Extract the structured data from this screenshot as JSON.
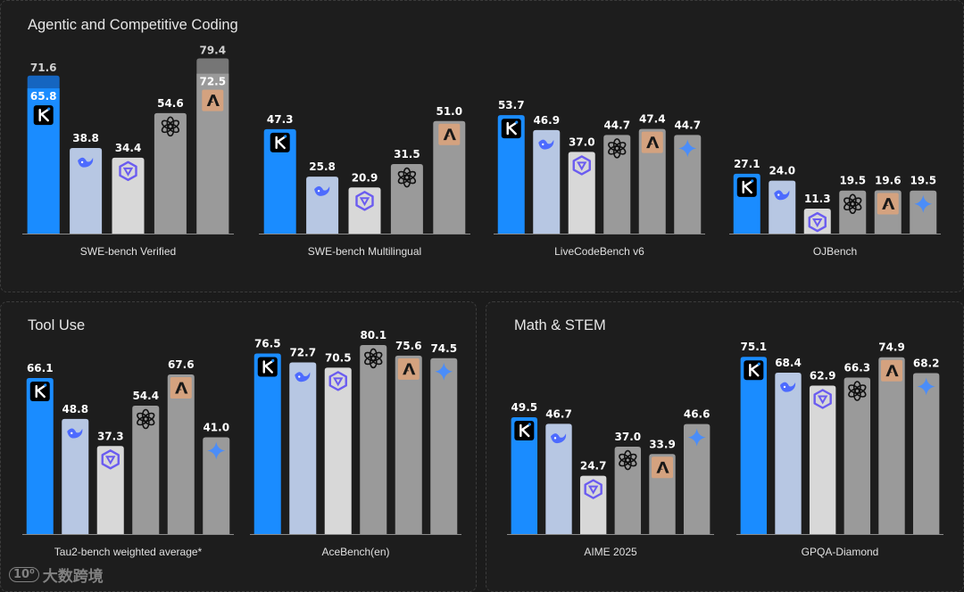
{
  "colors": {
    "kimi": "#1a8cff",
    "deepseek": "#b7c7e3",
    "qwen": "#d8d8d8",
    "openai": "#9a9a9a",
    "anthropic": "#9a9a9a",
    "gemini": "#9a9a9a",
    "extension": "#767676",
    "value_text": "#ffffff",
    "anthropic_icon_bg": "#d4a27f",
    "axis": "#8a8a8a"
  },
  "panels": [
    {
      "title": "Agentic and Competitive Coding"
    },
    {
      "title": "Tool Use"
    },
    {
      "title": "Math & STEM"
    }
  ],
  "watermark": {
    "logo": "10⁰",
    "text": "大数跨境"
  },
  "chart_data": [
    {
      "type": "bar",
      "title": "SWE-bench Verified",
      "panel": 0,
      "ylim": [
        0,
        80
      ],
      "bars": [
        {
          "model": "kimi",
          "icon": "kimi-icon",
          "value": 65.8,
          "extended": 71.6
        },
        {
          "model": "deepseek",
          "icon": "deepseek-icon",
          "value": 38.8
        },
        {
          "model": "qwen",
          "icon": "qwen-icon",
          "value": 34.4
        },
        {
          "model": "openai",
          "icon": "openai-icon",
          "value": 54.6
        },
        {
          "model": "anthropic",
          "icon": "anthropic-icon",
          "value": 72.5,
          "extended": 79.4
        }
      ]
    },
    {
      "type": "bar",
      "title": "SWE-bench Multilingual",
      "panel": 0,
      "ylim": [
        0,
        80
      ],
      "bars": [
        {
          "model": "kimi",
          "icon": "kimi-icon",
          "value": 47.3
        },
        {
          "model": "deepseek",
          "icon": "deepseek-icon",
          "value": 25.8
        },
        {
          "model": "qwen",
          "icon": "qwen-icon",
          "value": 20.9
        },
        {
          "model": "openai",
          "icon": "openai-icon",
          "value": 31.5
        },
        {
          "model": "anthropic",
          "icon": "anthropic-icon",
          "value": 51.0
        }
      ]
    },
    {
      "type": "bar",
      "title": "LiveCodeBench v6",
      "panel": 0,
      "ylim": [
        0,
        80
      ],
      "bars": [
        {
          "model": "kimi",
          "icon": "kimi-icon",
          "value": 53.7
        },
        {
          "model": "deepseek",
          "icon": "deepseek-icon",
          "value": 46.9
        },
        {
          "model": "qwen",
          "icon": "qwen-icon",
          "value": 37.0
        },
        {
          "model": "openai",
          "icon": "openai-icon",
          "value": 44.7
        },
        {
          "model": "anthropic",
          "icon": "anthropic-icon",
          "value": 47.4
        },
        {
          "model": "gemini",
          "icon": "gemini-icon",
          "value": 44.7
        }
      ]
    },
    {
      "type": "bar",
      "title": "OJBench",
      "panel": 0,
      "ylim": [
        0,
        80
      ],
      "bars": [
        {
          "model": "kimi",
          "icon": "kimi-icon",
          "value": 27.1
        },
        {
          "model": "deepseek",
          "icon": "deepseek-icon",
          "value": 24.0
        },
        {
          "model": "qwen",
          "icon": "qwen-icon",
          "value": 11.3
        },
        {
          "model": "openai",
          "icon": "openai-icon",
          "value": 19.5
        },
        {
          "model": "anthropic",
          "icon": "anthropic-icon",
          "value": 19.6
        },
        {
          "model": "gemini",
          "icon": "gemini-icon",
          "value": 19.5
        }
      ]
    },
    {
      "type": "bar",
      "title": "Tau2-bench weighted average*",
      "panel": 1,
      "ylim": [
        0,
        85
      ],
      "bars": [
        {
          "model": "kimi",
          "icon": "kimi-icon",
          "value": 66.1
        },
        {
          "model": "deepseek",
          "icon": "deepseek-icon",
          "value": 48.8
        },
        {
          "model": "qwen",
          "icon": "qwen-icon",
          "value": 37.3
        },
        {
          "model": "openai",
          "icon": "openai-icon",
          "value": 54.4
        },
        {
          "model": "anthropic",
          "icon": "anthropic-icon",
          "value": 67.6
        },
        {
          "model": "gemini",
          "icon": "gemini-icon",
          "value": 41.0
        }
      ]
    },
    {
      "type": "bar",
      "title": "AceBench(en)",
      "panel": 1,
      "ylim": [
        0,
        85
      ],
      "bars": [
        {
          "model": "kimi",
          "icon": "kimi-icon",
          "value": 76.5
        },
        {
          "model": "deepseek",
          "icon": "deepseek-icon",
          "value": 72.7
        },
        {
          "model": "qwen",
          "icon": "qwen-icon",
          "value": 70.5
        },
        {
          "model": "openai",
          "icon": "openai-icon",
          "value": 80.1
        },
        {
          "model": "anthropic",
          "icon": "anthropic-icon",
          "value": 75.6
        },
        {
          "model": "gemini",
          "icon": "gemini-icon",
          "value": 74.5
        }
      ]
    },
    {
      "type": "bar",
      "title": "AIME 2025",
      "panel": 2,
      "ylim": [
        0,
        85
      ],
      "bars": [
        {
          "model": "kimi",
          "icon": "kimi-icon",
          "value": 49.5
        },
        {
          "model": "deepseek",
          "icon": "deepseek-icon",
          "value": 46.7
        },
        {
          "model": "qwen",
          "icon": "qwen-icon",
          "value": 24.7
        },
        {
          "model": "openai",
          "icon": "openai-icon",
          "value": 37.0
        },
        {
          "model": "anthropic",
          "icon": "anthropic-icon",
          "value": 33.9
        },
        {
          "model": "gemini",
          "icon": "gemini-icon",
          "value": 46.6
        }
      ]
    },
    {
      "type": "bar",
      "title": "GPQA-Diamond",
      "panel": 2,
      "ylim": [
        0,
        85
      ],
      "bars": [
        {
          "model": "kimi",
          "icon": "kimi-icon",
          "value": 75.1
        },
        {
          "model": "deepseek",
          "icon": "deepseek-icon",
          "value": 68.4
        },
        {
          "model": "qwen",
          "icon": "qwen-icon",
          "value": 62.9
        },
        {
          "model": "openai",
          "icon": "openai-icon",
          "value": 66.3
        },
        {
          "model": "anthropic",
          "icon": "anthropic-icon",
          "value": 74.9
        },
        {
          "model": "gemini",
          "icon": "gemini-icon",
          "value": 68.2
        }
      ]
    }
  ]
}
